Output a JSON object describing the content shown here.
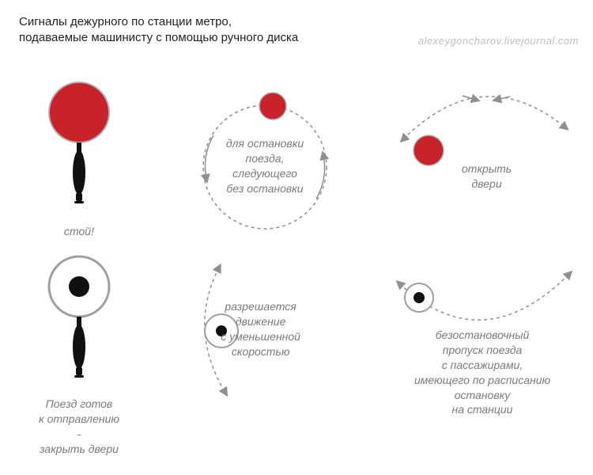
{
  "header": {
    "title_line1": "Сигналы дежурного по станции метро,",
    "title_line2": "подаваемые машинисту с помощью ручного диска"
  },
  "watermark": "alexeygoncharov.livejournal.com",
  "colors": {
    "red": "#c8232a",
    "red_border": "#b0b0b0",
    "black": "#111111",
    "ring": "#9e9e9e",
    "dash": "#8f8f8f",
    "arrow": "#8f8f8f",
    "caption": "#7a7a7a",
    "background": "#ffffff"
  },
  "style": {
    "caption_fontsize": 14,
    "caption_style": "italic",
    "dash_pattern": "4 4",
    "arrow_size": 6,
    "disc_border_width": 2
  },
  "signals": {
    "stop": {
      "caption": "стой!",
      "paddle": {
        "disc_color": "#c8232a",
        "disc_r": 38,
        "handle_color": "#111111",
        "disc_border": "#b0b0b0"
      }
    },
    "stop_running": {
      "caption": "для остановки\nпоезда,\nследующего\nбез остановки",
      "motion": "circle",
      "circle_r": 78,
      "disc_r": 17,
      "disc_color": "#c8232a"
    },
    "open_doors": {
      "caption": "открыть\nдвери",
      "motion": "arc_up",
      "disc_r": 19,
      "disc_color": "#c8232a"
    },
    "ready_close": {
      "caption": "Поезд готов\nк отправлению\n-\nзакрыть двери",
      "paddle": {
        "disc_color": "#ffffff",
        "dot_color": "#111111",
        "disc_r": 38,
        "dot_r": 13,
        "ring_color": "#9e9e9e",
        "handle_color": "#111111"
      }
    },
    "slow": {
      "caption": "разрешается\nдвижение\nс уменьшенной\nскоростью",
      "motion": "arc_vertical",
      "disc_r": 15,
      "ring_r": 21,
      "dot_r": 7
    },
    "nonstop_pass": {
      "caption": "безостановочный\nпропуск поезда\nс пассажирами,\nимеющего по расписанию\nостановку\nна станции",
      "motion": "arc_down",
      "disc_r": 18,
      "ring_r": 18,
      "dot_r": 7
    }
  }
}
